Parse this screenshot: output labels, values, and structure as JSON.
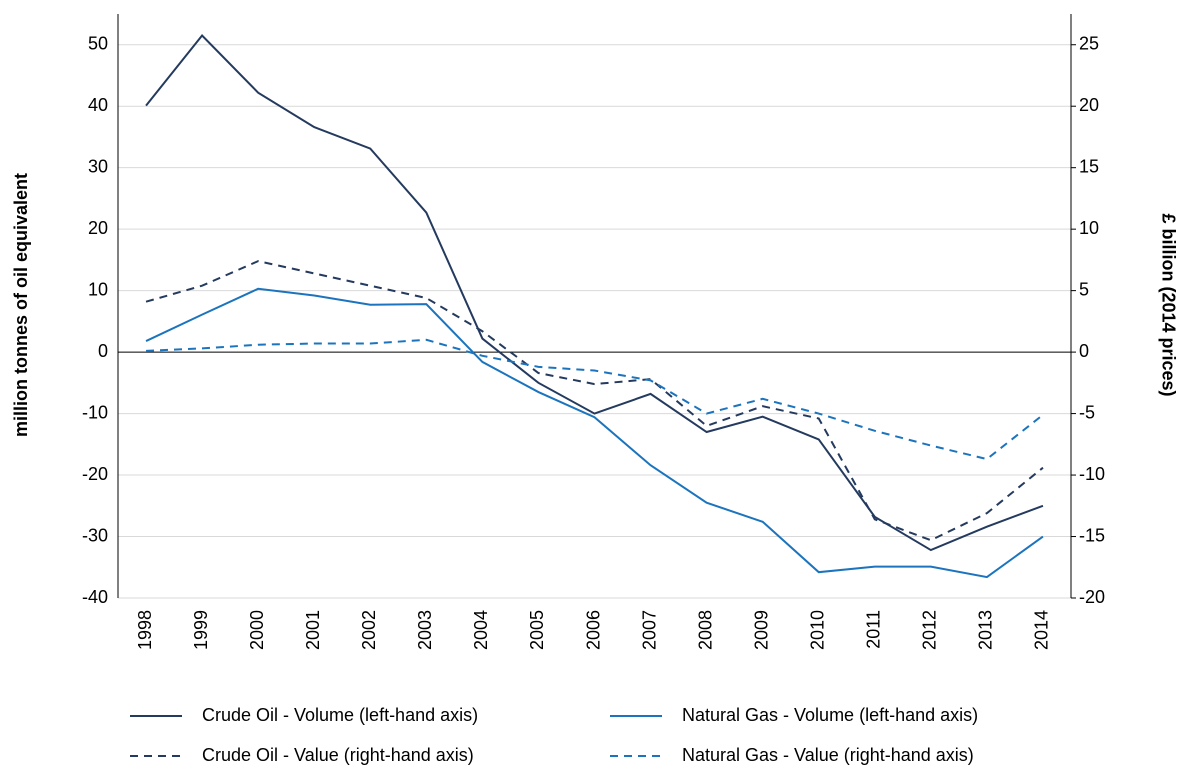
{
  "chart_data": {
    "type": "line",
    "ylabel": "million tonnes of oil equivalent",
    "y2label": "£ billion (2014 prices)",
    "categories": [
      "1998",
      "1999",
      "2000",
      "2001",
      "2002",
      "2003",
      "2004",
      "2005",
      "2006",
      "2007",
      "2008",
      "2009",
      "2010",
      "2011",
      "2012",
      "2013",
      "2014"
    ],
    "series": [
      {
        "name": "Crude Oil - Volume (left-hand axis)",
        "color": "#243a5e",
        "dash": false,
        "values": [
          40.1,
          51.5,
          42.2,
          36.6,
          33.1,
          22.7,
          2.2,
          -5.0,
          -10.0,
          -6.8,
          -13.0,
          -10.5,
          -14.2,
          -26.8,
          -32.2,
          -28.4,
          -25.0
        ]
      },
      {
        "name": "Natural Gas - Volume (left-hand axis)",
        "color": "#1b74bd",
        "dash": false,
        "values": [
          1.8,
          6.1,
          10.3,
          9.2,
          7.7,
          7.8,
          -1.6,
          -6.5,
          -10.6,
          -18.4,
          -24.5,
          -27.6,
          -35.8,
          -34.9,
          -34.9,
          -36.6,
          -30.0
        ]
      },
      {
        "name": "Crude Oil - Value (right-hand axis)",
        "color": "#243a5e",
        "dash": true,
        "axis": "y2",
        "values": [
          4.1,
          5.4,
          7.4,
          6.4,
          5.4,
          4.4,
          1.7,
          -1.7,
          -2.6,
          -2.2,
          -6.0,
          -4.4,
          -5.4,
          -13.6,
          -15.3,
          -13.1,
          -9.4
        ]
      },
      {
        "name": "Natural Gas - Value (right-hand axis)",
        "color": "#1b74bd",
        "dash": true,
        "axis": "y2",
        "values": [
          0.1,
          0.3,
          0.6,
          0.7,
          0.7,
          1.0,
          -0.3,
          -1.2,
          -1.5,
          -2.3,
          -5.0,
          -3.8,
          -5.0,
          -6.4,
          -7.6,
          -8.7,
          -5.1
        ]
      }
    ],
    "ylim": [
      -40,
      55
    ],
    "yticks": [
      -40,
      -30,
      -20,
      -10,
      0,
      10,
      20,
      30,
      40,
      50
    ],
    "y2lim": [
      -20,
      27.5
    ],
    "y2ticks": [
      -20,
      -15,
      -10,
      -5,
      0,
      5,
      10,
      15,
      20,
      25
    ],
    "grid": true
  }
}
